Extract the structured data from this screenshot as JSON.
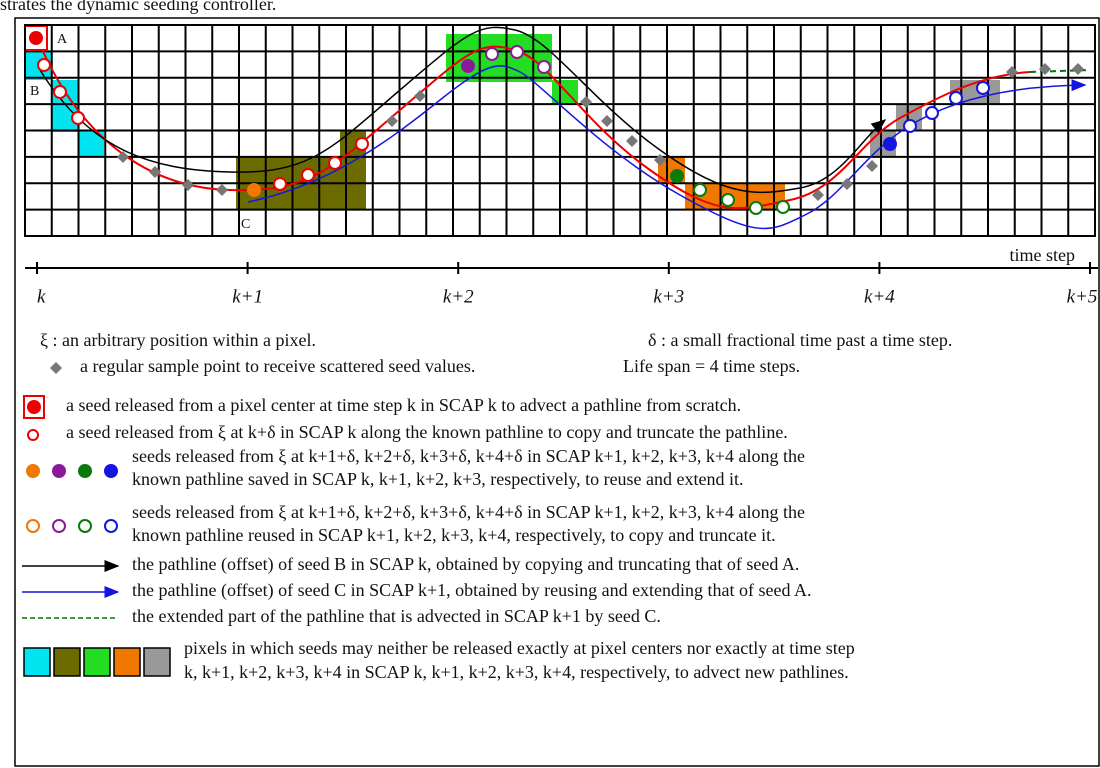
{
  "caption": "strates the dynamic seeding controller.",
  "figure": {
    "point_labels": [
      "A",
      "B",
      "C"
    ],
    "axis_label": "time step",
    "ticks": [
      "k",
      "k+1",
      "k+2",
      "k+3",
      "k+4",
      "k+5"
    ]
  },
  "notes": [
    "ξ : an arbitrary position within a pixel.",
    "δ : a small fractional time past a time step.",
    "a regular sample point to receive scattered seed values.",
    "Life span = 4 time steps."
  ],
  "legend": [
    [
      "a seed released from a pixel center at time step k in SCAP k to advect a pathline from scratch."
    ],
    [
      "a seed released from ξ at k+δ in SCAP k along the known pathline to copy and truncate the pathline."
    ],
    [
      "seeds released from ξ at k+1+δ, k+2+δ, k+3+δ, k+4+δ in SCAP k+1, k+2, k+3, k+4 along the",
      "known pathline saved in SCAP k, k+1, k+2, k+3, respectively, to reuse and extend it."
    ],
    [
      "seeds released from ξ at k+1+δ, k+2+δ, k+3+δ, k+4+δ in SCAP k+1, k+2, k+3, k+4 along the",
      "known pathline reused in SCAP k+1, k+2, k+3, k+4, respectively, to copy and truncate it."
    ],
    [
      "the pathline (offset) of seed B in SCAP k, obtained by copying and truncating that of seed A."
    ],
    [
      "the pathline (offset) of seed C in SCAP k+1, obtained by reusing and extending that of seed A."
    ],
    [
      "the extended part of the pathline that is advected in SCAP k+1 by seed C."
    ],
    [
      "pixels in which seeds may neither be released exactly at pixel centers nor exactly at time step",
      "k, k+1, k+2, k+3, k+4 in SCAP k, k+1, k+2, k+3, k+4, respectively, to advect new pathlines."
    ]
  ]
}
